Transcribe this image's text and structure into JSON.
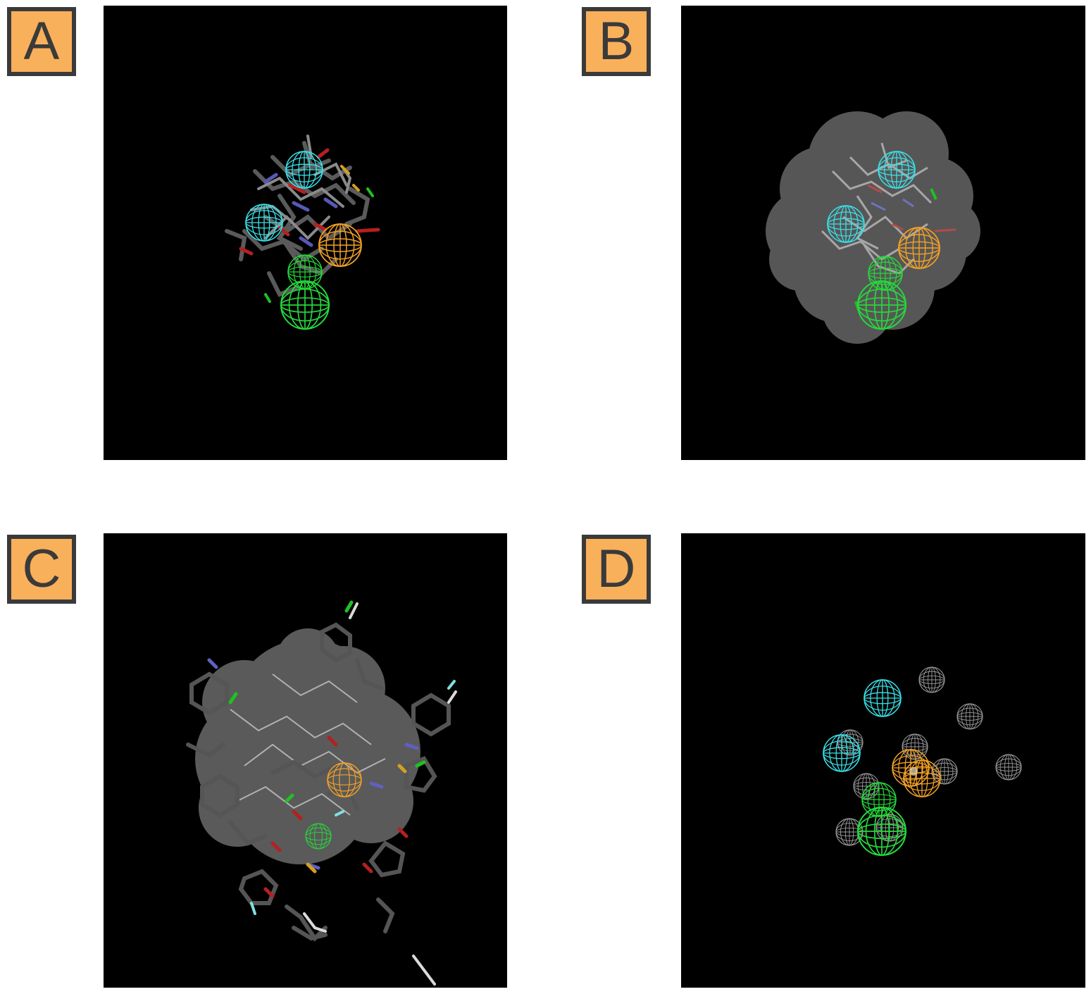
{
  "panels": [
    {
      "label": "A",
      "content": "molecules-with-pharmacophore-features"
    },
    {
      "label": "B",
      "content": "molecules-with-shape-surface-and-features"
    },
    {
      "label": "C",
      "content": "expanded-set-with-shape-surface"
    },
    {
      "label": "D",
      "content": "pharmacophore-features-with-exclusion-volumes"
    }
  ],
  "colors": {
    "label_fill": "#f9b05b",
    "label_border": "#3a3a3a",
    "panel_background": "#000000",
    "hydrophobic_feature": "#25d93a",
    "hbond_acceptor_feature": "#39e0e8",
    "aromatic_ring_feature": "#f2a025",
    "exclusion_volume": "#9a9a9a"
  }
}
